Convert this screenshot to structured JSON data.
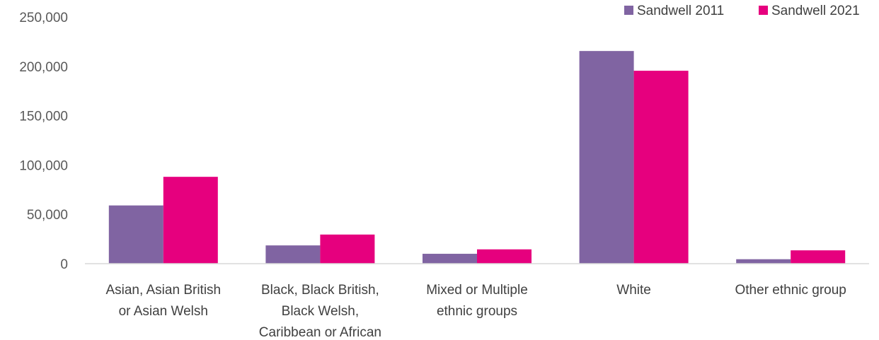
{
  "chart_data": {
    "type": "bar",
    "categories": [
      [
        "Asian, Asian British",
        "or Asian Welsh"
      ],
      [
        "Black, Black British,",
        "Black Welsh,",
        "Caribbean or African"
      ],
      [
        "Mixed or Multiple",
        "ethnic groups"
      ],
      [
        "White"
      ],
      [
        "Other ethnic group"
      ]
    ],
    "series": [
      {
        "name": "Sandwell 2011",
        "color": "#8064A2",
        "values": [
          59000,
          18500,
          10000,
          215500,
          4500
        ]
      },
      {
        "name": "Sandwell 2021",
        "color": "#E6007E",
        "values": [
          88000,
          29500,
          14500,
          195500,
          13500
        ]
      }
    ],
    "yticks": [
      "0",
      "50,000",
      "100,000",
      "150,000",
      "200,000",
      "250,000"
    ],
    "ytick_values": [
      0,
      50000,
      100000,
      150000,
      200000,
      250000
    ],
    "ylim": [
      0,
      250000
    ],
    "grid": false,
    "legend_position": "top-right"
  }
}
